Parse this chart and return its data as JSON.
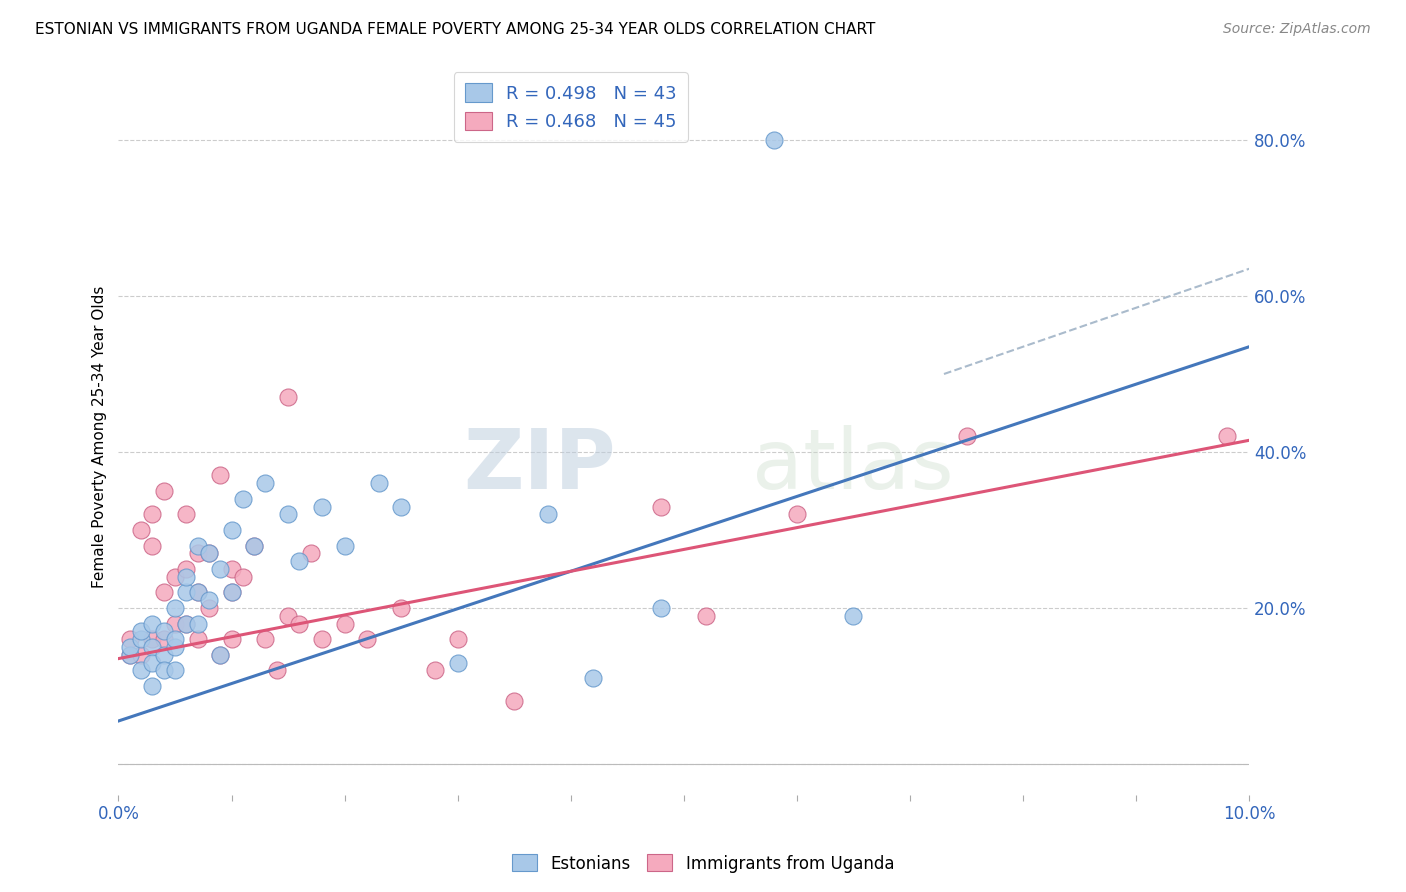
{
  "title": "ESTONIAN VS IMMIGRANTS FROM UGANDA FEMALE POVERTY AMONG 25-34 YEAR OLDS CORRELATION CHART",
  "source": "Source: ZipAtlas.com",
  "ylabel": "Female Poverty Among 25-34 Year Olds",
  "xlim": [
    0.0,
    0.1
  ],
  "ylim": [
    -0.04,
    0.88
  ],
  "xticks": [
    0.0,
    0.01,
    0.02,
    0.03,
    0.04,
    0.05,
    0.06,
    0.07,
    0.08,
    0.09,
    0.1
  ],
  "yticks_right": [
    0.2,
    0.4,
    0.6,
    0.8
  ],
  "ytick_grid": [
    0.0,
    0.2,
    0.4,
    0.6,
    0.8
  ],
  "blue_color": "#A8C8E8",
  "pink_color": "#F5AABE",
  "blue_edge_color": "#6699CC",
  "pink_edge_color": "#CC6688",
  "blue_line_color": "#4477BB",
  "pink_line_color": "#DD5577",
  "dashed_line_color": "#AABBCC",
  "R_blue": 0.498,
  "N_blue": 43,
  "R_pink": 0.468,
  "N_pink": 45,
  "legend_label_blue": "Estonians",
  "legend_label_pink": "Immigrants from Uganda",
  "watermark_zip": "ZIP",
  "watermark_atlas": "atlas",
  "blue_scatter_x": [
    0.001,
    0.001,
    0.002,
    0.002,
    0.002,
    0.003,
    0.003,
    0.003,
    0.003,
    0.004,
    0.004,
    0.004,
    0.005,
    0.005,
    0.005,
    0.005,
    0.006,
    0.006,
    0.006,
    0.007,
    0.007,
    0.007,
    0.008,
    0.008,
    0.009,
    0.009,
    0.01,
    0.01,
    0.011,
    0.012,
    0.013,
    0.015,
    0.016,
    0.018,
    0.02,
    0.023,
    0.025,
    0.03,
    0.038,
    0.042,
    0.048,
    0.058,
    0.065
  ],
  "blue_scatter_y": [
    0.14,
    0.15,
    0.16,
    0.12,
    0.17,
    0.15,
    0.18,
    0.13,
    0.1,
    0.17,
    0.14,
    0.12,
    0.15,
    0.2,
    0.16,
    0.12,
    0.22,
    0.18,
    0.24,
    0.22,
    0.18,
    0.28,
    0.27,
    0.21,
    0.14,
    0.25,
    0.22,
    0.3,
    0.34,
    0.28,
    0.36,
    0.32,
    0.26,
    0.33,
    0.28,
    0.36,
    0.33,
    0.13,
    0.32,
    0.11,
    0.2,
    0.8,
    0.19
  ],
  "pink_scatter_x": [
    0.001,
    0.001,
    0.002,
    0.002,
    0.003,
    0.003,
    0.003,
    0.004,
    0.004,
    0.004,
    0.005,
    0.005,
    0.006,
    0.006,
    0.006,
    0.007,
    0.007,
    0.007,
    0.008,
    0.008,
    0.009,
    0.009,
    0.01,
    0.01,
    0.01,
    0.011,
    0.012,
    0.013,
    0.014,
    0.015,
    0.015,
    0.016,
    0.017,
    0.018,
    0.02,
    0.022,
    0.025,
    0.028,
    0.03,
    0.035,
    0.048,
    0.052,
    0.06,
    0.075,
    0.098
  ],
  "pink_scatter_y": [
    0.14,
    0.16,
    0.14,
    0.3,
    0.32,
    0.28,
    0.16,
    0.35,
    0.16,
    0.22,
    0.18,
    0.24,
    0.25,
    0.32,
    0.18,
    0.16,
    0.27,
    0.22,
    0.2,
    0.27,
    0.37,
    0.14,
    0.22,
    0.16,
    0.25,
    0.24,
    0.28,
    0.16,
    0.12,
    0.19,
    0.47,
    0.18,
    0.27,
    0.16,
    0.18,
    0.16,
    0.2,
    0.12,
    0.16,
    0.08,
    0.33,
    0.19,
    0.32,
    0.42,
    0.42
  ],
  "blue_line_x": [
    0.0,
    0.1
  ],
  "blue_line_y": [
    0.055,
    0.535
  ],
  "pink_line_x": [
    0.0,
    0.1
  ],
  "pink_line_y": [
    0.135,
    0.415
  ],
  "dashed_line_x": [
    0.073,
    0.1
  ],
  "dashed_line_y": [
    0.5,
    0.635
  ]
}
